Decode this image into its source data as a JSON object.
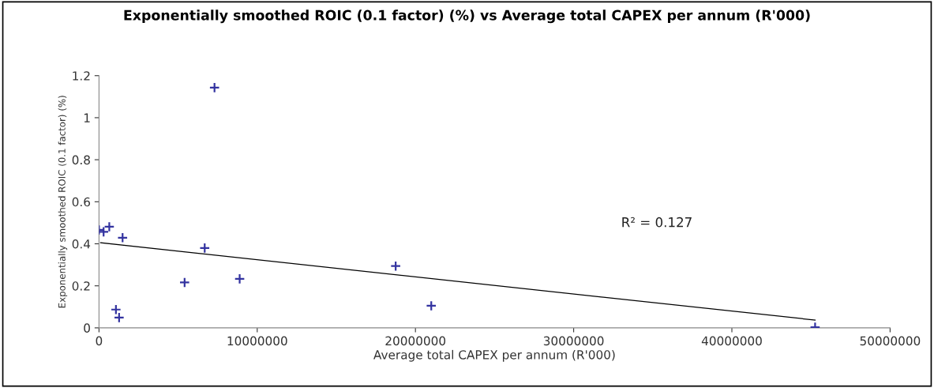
{
  "chart_data": {
    "type": "scatter",
    "title": "Exponentially smoothed ROIC (0.1 factor) (%) vs Average total CAPEX per annum (R'000)",
    "xlabel": "Average total CAPEX per annum (R'000)",
    "ylabel": "Exponentially smoothed ROIC (0.1 factor) (%)",
    "series": [
      {
        "color": "#3333a0",
        "marker": "cross",
        "x": [
          0,
          290000,
          650000,
          1490000,
          1070000,
          1270000,
          5410000,
          6680000,
          7300000,
          8890000,
          18750000,
          21000000,
          45260000
        ],
        "values": [
          0.466,
          0.457,
          0.481,
          0.429,
          0.087,
          0.049,
          0.216,
          0.38,
          1.143,
          0.233,
          0.294,
          0.105,
          0.003
        ]
      },
      {
        "type": "line",
        "color": "#000000",
        "x": [
          100000,
          45260000
        ],
        "values": [
          0.405,
          0.037
        ]
      }
    ],
    "annotations": [
      "R² = 0.127"
    ],
    "xlim": [
      0,
      50000000
    ],
    "xticks": [
      0,
      10000000,
      20000000,
      30000000,
      40000000,
      50000000
    ],
    "ylim": [
      0,
      1.2
    ],
    "yticks": [
      0,
      0.2,
      0.4,
      0.6,
      0.8,
      1,
      1.2
    ]
  }
}
